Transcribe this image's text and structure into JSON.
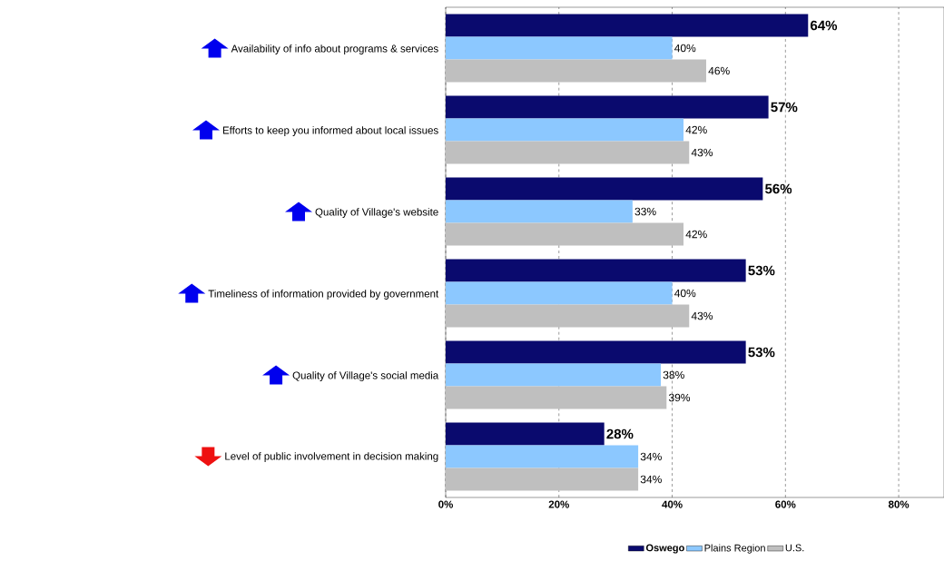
{
  "chart_data": {
    "type": "bar",
    "orientation": "horizontal",
    "categories": [
      "Availability of info about programs & services",
      "Efforts to keep you informed about local issues",
      "Quality of Village's website",
      "Timeliness of information provided by government",
      "Quality of Village's social media",
      "Level of public involvement in decision making"
    ],
    "series": [
      {
        "name": "Oswego",
        "color": "#0a0a6e",
        "values": [
          64,
          57,
          56,
          53,
          53,
          28
        ],
        "value_labels": [
          "64%",
          "57%",
          "56%",
          "53%",
          "53%",
          "28%"
        ]
      },
      {
        "name": "Plains Region",
        "color": "#8cc8ff",
        "values": [
          40,
          42,
          33,
          40,
          38,
          34
        ],
        "value_labels": [
          "40%",
          "42%",
          "33%",
          "40%",
          "38%",
          "34%"
        ]
      },
      {
        "name": "U.S.",
        "color": "#bfbfbf",
        "values": [
          46,
          43,
          42,
          43,
          39,
          34
        ],
        "value_labels": [
          "46%",
          "43%",
          "42%",
          "43%",
          "39%",
          "34%"
        ]
      }
    ],
    "xlim": [
      0,
      88
    ],
    "xticks": [
      {
        "value": 0,
        "label": "0%"
      },
      {
        "value": 20,
        "label": "20%"
      },
      {
        "value": 40,
        "label": "40%"
      },
      {
        "value": 60,
        "label": "60%"
      },
      {
        "value": 80,
        "label": "80%"
      }
    ],
    "grid": "x",
    "legend": "bottom"
  }
}
